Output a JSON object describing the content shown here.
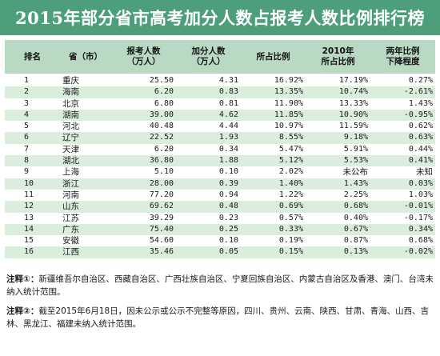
{
  "title": "2015年部分省市高考加分人数占报考人数比例排行榜",
  "headers": {
    "rank": "排名",
    "province": "省（市）",
    "applicants_l1": "报考人数",
    "applicants_l2": "（万人）",
    "bonus_l1": "加分人数",
    "bonus_l2": "（万人）",
    "ratio": "所占比例",
    "ratio2010_l1": "2010年",
    "ratio2010_l2": "所占比例",
    "decline_l1": "两年比例",
    "decline_l2": "下降程度"
  },
  "rows": [
    {
      "rank": "1",
      "province": "重庆",
      "applicants": "25.50",
      "bonus": "4.31",
      "ratio": "16.92%",
      "ratio2010": "17.19%",
      "decline": "0.27%"
    },
    {
      "rank": "2",
      "province": "海南",
      "applicants": "6.20",
      "bonus": "0.83",
      "ratio": "13.35%",
      "ratio2010": "10.74%",
      "decline": "-2.61%"
    },
    {
      "rank": "3",
      "province": "北京",
      "applicants": "6.80",
      "bonus": "0.81",
      "ratio": "11.90%",
      "ratio2010": "13.33%",
      "decline": "1.43%"
    },
    {
      "rank": "4",
      "province": "湖南",
      "applicants": "39.00",
      "bonus": "4.62",
      "ratio": "11.85%",
      "ratio2010": "10.90%",
      "decline": "-0.95%"
    },
    {
      "rank": "5",
      "province": "河北",
      "applicants": "40.48",
      "bonus": "4.44",
      "ratio": "10.97%",
      "ratio2010": "11.59%",
      "decline": "0.62%"
    },
    {
      "rank": "6",
      "province": "辽宁",
      "applicants": "22.52",
      "bonus": "1.93",
      "ratio": "8.55%",
      "ratio2010": "9.18%",
      "decline": "0.63%"
    },
    {
      "rank": "7",
      "province": "天津",
      "applicants": "6.20",
      "bonus": "0.34",
      "ratio": "5.47%",
      "ratio2010": "5.91%",
      "decline": "0.44%"
    },
    {
      "rank": "8",
      "province": "湖北",
      "applicants": "36.80",
      "bonus": "1.88",
      "ratio": "5.12%",
      "ratio2010": "5.53%",
      "decline": "0.41%"
    },
    {
      "rank": "9",
      "province": "上海",
      "applicants": "5.10",
      "bonus": "0.10",
      "ratio": "2.02%",
      "ratio2010": "未公布",
      "decline": "未知"
    },
    {
      "rank": "10",
      "province": "浙江",
      "applicants": "28.00",
      "bonus": "0.39",
      "ratio": "1.40%",
      "ratio2010": "1.43%",
      "decline": "0.03%"
    },
    {
      "rank": "11",
      "province": "河南",
      "applicants": "77.20",
      "bonus": "0.94",
      "ratio": "1.22%",
      "ratio2010": "2.25%",
      "decline": "1.03%"
    },
    {
      "rank": "12",
      "province": "山东",
      "applicants": "69.62",
      "bonus": "0.48",
      "ratio": "0.69%",
      "ratio2010": "0.68%",
      "decline": "-0.01%"
    },
    {
      "rank": "13",
      "province": "江苏",
      "applicants": "39.29",
      "bonus": "0.23",
      "ratio": "0.57%",
      "ratio2010": "0.40%",
      "decline": "-0.17%"
    },
    {
      "rank": "14",
      "province": "广东",
      "applicants": "75.40",
      "bonus": "0.25",
      "ratio": "0.33%",
      "ratio2010": "0.67%",
      "decline": "0.34%"
    },
    {
      "rank": "15",
      "province": "安徽",
      "applicants": "54.60",
      "bonus": "0.10",
      "ratio": "0.19%",
      "ratio2010": "0.87%",
      "decline": "0.68%"
    },
    {
      "rank": "16",
      "province": "江西",
      "applicants": "35.46",
      "bonus": "0.05",
      "ratio": "0.15%",
      "ratio2010": "0.13%",
      "decline": "-0.02%"
    }
  ],
  "notes": [
    {
      "head": "注释①：",
      "text": "新疆维吾尔自治区、西藏自治区、广西壮族自治区、宁夏回族自治区、内蒙古自治区及香港、澳门、台湾未纳入统计范围。"
    },
    {
      "head": "注释②：",
      "text": "截至2015年6月18日，因未公示或公示不完整等原因，四川、贵州、云南、陕西、甘肃、青海、山西、吉林、黑龙江、福建未纳入统计范围。"
    }
  ],
  "colors": {
    "title_bg": "#4d9f7a",
    "header_bg": "#b9d9c3",
    "stripe": "#dbeedd"
  }
}
